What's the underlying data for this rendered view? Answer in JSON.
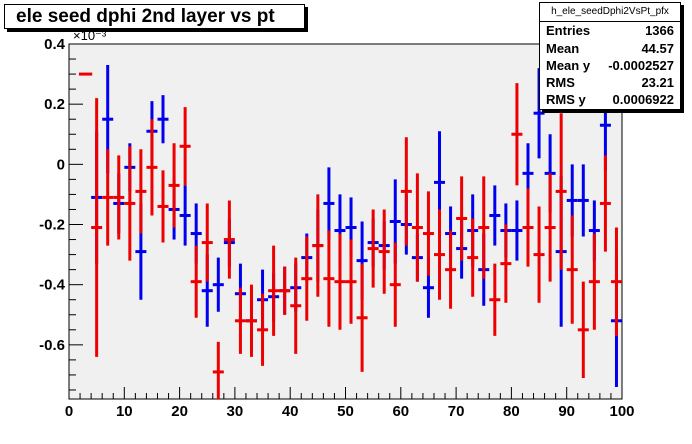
{
  "title": "ele seed dphi 2nd layer vs pt",
  "stats": {
    "name": "h_ele_seedDphi2VsPt_pfx",
    "rows": [
      {
        "key": "Entries",
        "value": "1366"
      },
      {
        "key": "Mean",
        "value": "44.57"
      },
      {
        "key": "Mean y",
        "value": "-0.0002527"
      },
      {
        "key": "RMS",
        "value": "23.21"
      },
      {
        "key": "RMS y",
        "value": "0.0006922"
      }
    ]
  },
  "colors": {
    "frame_bg": "#f0f0f0",
    "blue": "#0000ee",
    "red": "#ee0000",
    "axis": "#000000"
  },
  "chart_data": {
    "type": "scatter",
    "title": "ele seed dphi 2nd layer vs pt",
    "xlim": [
      0,
      100
    ],
    "ylim": [
      -0.78,
      0.4
    ],
    "y_scale_label": "×10⁻³",
    "xticks": [
      "0",
      "10",
      "20",
      "30",
      "40",
      "50",
      "60",
      "70",
      "80",
      "90",
      "100"
    ],
    "yticks": [
      "-0.6",
      "-0.4",
      "-0.2",
      "0",
      "0.2",
      "0.4"
    ],
    "series": [
      {
        "color": "blue",
        "points": [
          {
            "x": 5,
            "y": -0.11,
            "err": 0.22
          },
          {
            "x": 7,
            "y": 0.15,
            "err": 0.18
          },
          {
            "x": 9,
            "y": -0.13,
            "err": 0.1
          },
          {
            "x": 11,
            "y": -0.01,
            "err": 0.08
          },
          {
            "x": 13,
            "y": -0.29,
            "err": 0.16
          },
          {
            "x": 15,
            "y": 0.11,
            "err": 0.1
          },
          {
            "x": 17,
            "y": 0.15,
            "err": 0.08
          },
          {
            "x": 19,
            "y": -0.15,
            "err": 0.1
          },
          {
            "x": 21,
            "y": -0.17,
            "err": 0.1
          },
          {
            "x": 23,
            "y": -0.23,
            "err": 0.1
          },
          {
            "x": 25,
            "y": -0.42,
            "err": 0.12
          },
          {
            "x": 27,
            "y": -0.4,
            "err": 0.09
          },
          {
            "x": 29,
            "y": -0.26,
            "err": 0.08
          },
          {
            "x": 31,
            "y": -0.43,
            "err": 0.1
          },
          {
            "x": 33,
            "y": -0.52,
            "err": 0.1
          },
          {
            "x": 35,
            "y": -0.45,
            "err": 0.1
          },
          {
            "x": 37,
            "y": -0.44,
            "err": 0.08
          },
          {
            "x": 39,
            "y": -0.42,
            "err": 0.08
          },
          {
            "x": 41,
            "y": -0.41,
            "err": 0.08
          },
          {
            "x": 43,
            "y": -0.31,
            "err": 0.08
          },
          {
            "x": 45,
            "y": -0.27,
            "err": 0.12
          },
          {
            "x": 47,
            "y": -0.13,
            "err": 0.12
          },
          {
            "x": 49,
            "y": -0.22,
            "err": 0.12
          },
          {
            "x": 51,
            "y": -0.21,
            "err": 0.1
          },
          {
            "x": 53,
            "y": -0.32,
            "err": 0.13
          },
          {
            "x": 55,
            "y": -0.26,
            "err": 0.08
          },
          {
            "x": 57,
            "y": -0.27,
            "err": 0.08
          },
          {
            "x": 59,
            "y": -0.19,
            "err": 0.14
          },
          {
            "x": 61,
            "y": -0.2,
            "err": 0.1
          },
          {
            "x": 63,
            "y": -0.31,
            "err": 0.08
          },
          {
            "x": 65,
            "y": -0.41,
            "err": 0.1
          },
          {
            "x": 67,
            "y": -0.06,
            "err": 0.17
          },
          {
            "x": 69,
            "y": -0.23,
            "err": 0.09
          },
          {
            "x": 71,
            "y": -0.28,
            "err": 0.1
          },
          {
            "x": 73,
            "y": -0.22,
            "err": 0.12
          },
          {
            "x": 75,
            "y": -0.35,
            "err": 0.12
          },
          {
            "x": 77,
            "y": -0.17,
            "err": 0.1
          },
          {
            "x": 79,
            "y": -0.22,
            "err": 0.09
          },
          {
            "x": 81,
            "y": -0.22,
            "err": 0.1
          },
          {
            "x": 83,
            "y": -0.03,
            "err": 0.1
          },
          {
            "x": 85,
            "y": 0.17,
            "err": 0.15
          },
          {
            "x": 87,
            "y": -0.03,
            "err": 0.13
          },
          {
            "x": 89,
            "y": -0.29,
            "err": 0.25
          },
          {
            "x": 91,
            "y": -0.12,
            "err": 0.12
          },
          {
            "x": 93,
            "y": -0.12,
            "err": 0.12
          },
          {
            "x": 95,
            "y": -0.22,
            "err": 0.1
          },
          {
            "x": 97,
            "y": 0.13,
            "err": 0.15
          },
          {
            "x": 99,
            "y": -0.52,
            "err": 0.22
          }
        ]
      },
      {
        "color": "red",
        "points": [
          {
            "x": 5,
            "y": -0.21,
            "err": 0.43
          },
          {
            "x": 7,
            "y": -0.11,
            "err": 0.16
          },
          {
            "x": 9,
            "y": -0.11,
            "err": 0.14
          },
          {
            "x": 11,
            "y": -0.13,
            "err": 0.19
          },
          {
            "x": 13,
            "y": -0.09,
            "err": 0.14
          },
          {
            "x": 15,
            "y": -0.01,
            "err": 0.16
          },
          {
            "x": 17,
            "y": -0.14,
            "err": 0.12
          },
          {
            "x": 19,
            "y": -0.07,
            "err": 0.14
          },
          {
            "x": 21,
            "y": 0.06,
            "err": 0.13
          },
          {
            "x": 23,
            "y": -0.39,
            "err": 0.12
          },
          {
            "x": 25,
            "y": -0.26,
            "err": 0.13
          },
          {
            "x": 27,
            "y": -0.69,
            "err": 0.1
          },
          {
            "x": 29,
            "y": -0.25,
            "err": 0.13
          },
          {
            "x": 31,
            "y": -0.52,
            "err": 0.11
          },
          {
            "x": 33,
            "y": -0.52,
            "err": 0.12
          },
          {
            "x": 35,
            "y": -0.55,
            "err": 0.12
          },
          {
            "x": 37,
            "y": -0.42,
            "err": 0.15
          },
          {
            "x": 39,
            "y": -0.42,
            "err": 0.08
          },
          {
            "x": 41,
            "y": -0.47,
            "err": 0.16
          },
          {
            "x": 43,
            "y": -0.38,
            "err": 0.14
          },
          {
            "x": 45,
            "y": -0.27,
            "err": 0.17
          },
          {
            "x": 47,
            "y": -0.38,
            "err": 0.16
          },
          {
            "x": 49,
            "y": -0.39,
            "err": 0.16
          },
          {
            "x": 51,
            "y": -0.39,
            "err": 0.14
          },
          {
            "x": 53,
            "y": -0.51,
            "err": 0.18
          },
          {
            "x": 55,
            "y": -0.28,
            "err": 0.13
          },
          {
            "x": 57,
            "y": -0.29,
            "err": 0.14
          },
          {
            "x": 59,
            "y": -0.4,
            "err": 0.14
          },
          {
            "x": 61,
            "y": -0.09,
            "err": 0.18
          },
          {
            "x": 63,
            "y": -0.21,
            "err": 0.18
          },
          {
            "x": 65,
            "y": -0.23,
            "err": 0.14
          },
          {
            "x": 67,
            "y": -0.3,
            "err": 0.15
          },
          {
            "x": 69,
            "y": -0.35,
            "err": 0.13
          },
          {
            "x": 71,
            "y": -0.18,
            "err": 0.14
          },
          {
            "x": 73,
            "y": -0.31,
            "err": 0.13
          },
          {
            "x": 75,
            "y": -0.21,
            "err": 0.17
          },
          {
            "x": 77,
            "y": -0.45,
            "err": 0.12
          },
          {
            "x": 79,
            "y": -0.33,
            "err": 0.13
          },
          {
            "x": 81,
            "y": 0.1,
            "err": 0.17
          },
          {
            "x": 83,
            "y": -0.21,
            "err": 0.13
          },
          {
            "x": 85,
            "y": -0.3,
            "err": 0.16
          },
          {
            "x": 87,
            "y": -0.21,
            "err": 0.18
          },
          {
            "x": 89,
            "y": -0.09,
            "err": 0.26
          },
          {
            "x": 91,
            "y": -0.35,
            "err": 0.18
          },
          {
            "x": 93,
            "y": -0.55,
            "err": 0.16
          },
          {
            "x": 95,
            "y": -0.39,
            "err": 0.16
          },
          {
            "x": 97,
            "y": -0.13,
            "err": 0.16
          },
          {
            "x": 99,
            "y": -0.39,
            "err": 0.18
          }
        ]
      }
    ]
  }
}
